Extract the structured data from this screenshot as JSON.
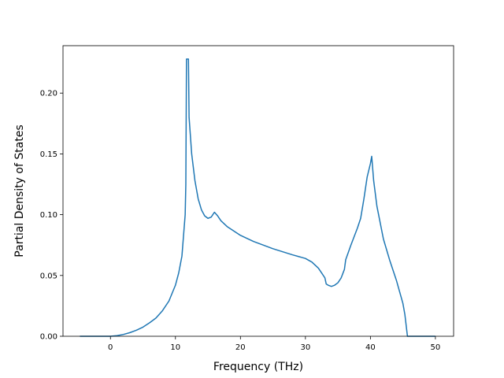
{
  "chart_data": {
    "type": "line",
    "title": "",
    "xlabel": "Frequency (THz)",
    "ylabel": "Partial Density of States",
    "xlim": [
      -7.3,
      52.8
    ],
    "ylim": [
      0,
      0.239
    ],
    "xticks": [
      0,
      10,
      20,
      30,
      40,
      50
    ],
    "yticks": [
      0.0,
      0.05,
      0.1,
      0.15,
      0.2
    ],
    "xtick_labels": [
      "0",
      "10",
      "20",
      "30",
      "40",
      "50"
    ],
    "ytick_labels": [
      "0.00",
      "0.05",
      "0.10",
      "0.15",
      "0.20"
    ],
    "grid": false,
    "legend": "none",
    "line_color": "#1f77b4",
    "series": [
      {
        "x": [
          -4.7,
          0,
          1,
          2,
          3,
          4,
          5,
          6,
          7,
          8,
          9,
          10,
          10.5,
          11,
          11.5,
          11.6,
          11.7,
          12.0,
          12.1,
          12.5,
          13,
          13.5,
          14,
          14.5,
          15,
          15.5,
          16,
          16.5,
          17,
          18,
          20,
          22,
          25,
          28,
          30,
          31,
          32,
          32.5,
          33,
          33.2,
          33.5,
          34,
          34.5,
          35,
          35.5,
          36,
          36.2,
          37,
          38,
          38.5,
          39,
          39.5,
          40,
          40.2,
          40.5,
          41,
          42,
          43,
          44,
          45,
          45.3,
          45.7,
          50
        ],
        "y": [
          0,
          0,
          0.0005,
          0.0015,
          0.003,
          0.005,
          0.0075,
          0.011,
          0.015,
          0.021,
          0.029,
          0.042,
          0.052,
          0.066,
          0.1,
          0.125,
          0.228,
          0.228,
          0.18,
          0.15,
          0.128,
          0.113,
          0.104,
          0.099,
          0.097,
          0.098,
          0.102,
          0.099,
          0.095,
          0.09,
          0.083,
          0.078,
          0.072,
          0.067,
          0.064,
          0.061,
          0.056,
          0.052,
          0.048,
          0.043,
          0.042,
          0.041,
          0.042,
          0.044,
          0.048,
          0.055,
          0.063,
          0.075,
          0.089,
          0.097,
          0.113,
          0.131,
          0.142,
          0.148,
          0.128,
          0.107,
          0.08,
          0.062,
          0.046,
          0.027,
          0.018,
          0,
          0
        ]
      }
    ]
  }
}
